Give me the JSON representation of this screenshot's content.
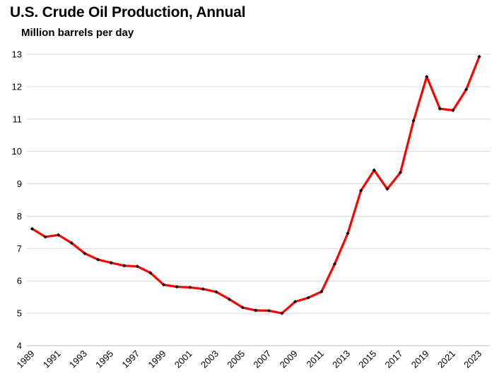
{
  "chart_data": {
    "type": "line",
    "title": "U.S. Crude Oil Production, Annual",
    "subtitle": "Million barrels per day",
    "xlabel": "",
    "ylabel": "",
    "ylim": [
      4,
      13
    ],
    "yticks": [
      4,
      5,
      6,
      7,
      8,
      9,
      10,
      11,
      12,
      13
    ],
    "xticks": [
      "1989",
      "1991",
      "1993",
      "1995",
      "1997",
      "1999",
      "2001",
      "2003",
      "2005",
      "2007",
      "2009",
      "2011",
      "2013",
      "2015",
      "2017",
      "2019",
      "2021",
      "2023"
    ],
    "grid": true,
    "legend": "none",
    "series": [
      {
        "color": "#ff0000",
        "marker_color": "#000000",
        "x": [
          1989,
          1990,
          1991,
          1992,
          1993,
          1994,
          1995,
          1996,
          1997,
          1998,
          1999,
          2000,
          2001,
          2002,
          2003,
          2004,
          2005,
          2006,
          2007,
          2008,
          2009,
          2010,
          2011,
          2012,
          2013,
          2014,
          2015,
          2016,
          2017,
          2018,
          2019,
          2020,
          2021,
          2022,
          2023
        ],
        "values": [
          7.61,
          7.36,
          7.42,
          7.17,
          6.85,
          6.66,
          6.56,
          6.47,
          6.45,
          6.25,
          5.88,
          5.82,
          5.8,
          5.75,
          5.66,
          5.43,
          5.18,
          5.09,
          5.08,
          5.0,
          5.36,
          5.48,
          5.67,
          6.52,
          7.47,
          8.79,
          9.42,
          8.84,
          9.35,
          10.95,
          12.31,
          11.32,
          11.27,
          11.91,
          12.93
        ]
      }
    ]
  }
}
